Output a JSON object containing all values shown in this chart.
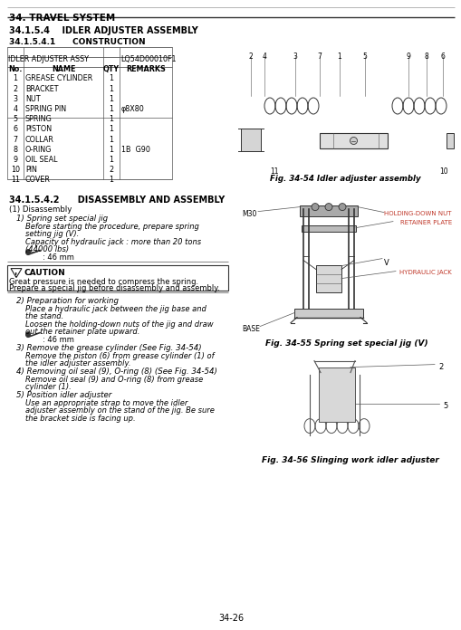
{
  "page_header": "34. TRAVEL SYSTEM",
  "section": "34.1.5.4",
  "section_title": "IDLER ADJUSTER ASSEMBLY",
  "subsection1": "34.1.5.4.1",
  "subsection1_title": "CONSTRUCTION",
  "table_header_left": "IDLER ADJUSTER ASSY",
  "table_header_right": "LQ54D00010F1",
  "table_columns": [
    "No.",
    "NAME",
    "QTY",
    "REMARKS"
  ],
  "table_rows": [
    [
      "1",
      "GREASE CYLINDER",
      "1",
      ""
    ],
    [
      "2",
      "BRACKET",
      "1",
      ""
    ],
    [
      "3",
      "NUT",
      "1",
      ""
    ],
    [
      "4",
      "SPRING PIN",
      "1",
      "φ8X80"
    ],
    [
      "5",
      "SPRING",
      "1",
      ""
    ],
    [
      "6",
      "PISTON",
      "1",
      ""
    ],
    [
      "7",
      "COLLAR",
      "1",
      ""
    ],
    [
      "8",
      "O-RING",
      "1",
      "1B  G90"
    ],
    [
      "9",
      "OIL SEAL",
      "1",
      ""
    ],
    [
      "10",
      "PIN",
      "2",
      ""
    ],
    [
      "11",
      "COVER",
      "1",
      ""
    ]
  ],
  "fig1_caption": "Fig. 34-54 Idler adjuster assembly",
  "subsection2": "34.1.5.4.2",
  "subsection2_title": "DISASSEMBLY AND ASSEMBLY",
  "disassembly_title": "(1) Disassembly",
  "step1_title": "1) Spring set special jig",
  "step1_lines": [
    "Before starting the procedure, prepare spring",
    "setting jig (V).",
    "Capacity of hydraulic jack : more than 20 tons",
    "(44000 lbs)"
  ],
  "step1_wrench": ": 46 mm",
  "caution_title": "CAUTION",
  "caution_text1": "Great pressure is needed to compress the spring.",
  "caution_text2": "Prepare a special jig before disassembly and assembly.",
  "step2_title": "2) Preparation for working",
  "step2_lines": [
    "Place a hydraulic jack between the jig base and",
    "the stand.",
    "Loosen the holding-down nuts of the jig and draw",
    "out the retainer plate upward."
  ],
  "step2_wrench": ": 46 mm",
  "step3_title": "3) Remove the grease cylinder (See Fig. 34-54)",
  "step3_lines": [
    "Remove the piston (6) from grease cylinder (1) of",
    "the idler adjuster assembly."
  ],
  "step4_title": "4) Removing oil seal (9), O-ring (8) (See Fig. 34-54)",
  "step4_lines": [
    "Remove oil seal (9) and O-ring (8) from grease",
    "cylinder (1)."
  ],
  "step5_title": "5) Position idler adjuster",
  "step5_lines": [
    "Use an appropriate strap to move the idler",
    "adjuster assembly on the stand of the jig. Be sure",
    "the bracket side is facing up."
  ],
  "fig2_caption": "Fig. 34-55 Spring set special jig (V)",
  "fig3_caption": "Fig. 34-56 Slinging work idler adjuster",
  "page_number": "34-26",
  "bg_color": "#ffffff",
  "label_color": "#c0392b",
  "line_color": "#555555",
  "text_fs": 6.0,
  "step_title_fs": 6.2,
  "heading_fs": 7.0,
  "header_fs": 7.5
}
